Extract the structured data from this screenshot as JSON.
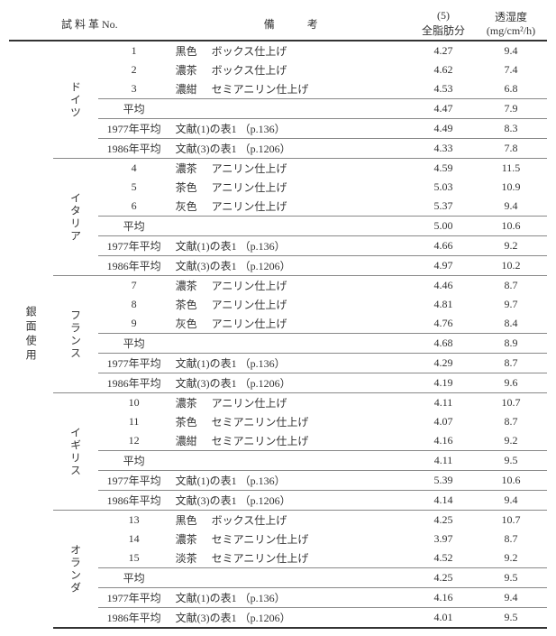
{
  "header": {
    "col_sample": "試 料 革 No.",
    "col_note": "備　　　考",
    "col_fat_top": "(5)",
    "col_fat_bottom": "全脂肪分",
    "col_perm_top": "透湿度",
    "col_perm_bottom": "(mg/cm²/h)"
  },
  "side_label": "銀面使用",
  "groups": [
    {
      "country": "ドイツ",
      "rows": [
        {
          "no": "1",
          "color": "黒色",
          "finish": "ボックス仕上げ",
          "fat": "4.27",
          "perm": "9.4"
        },
        {
          "no": "2",
          "color": "濃茶",
          "finish": "ボックス仕上げ",
          "fat": "4.62",
          "perm": "7.4"
        },
        {
          "no": "3",
          "color": "濃紺",
          "finish": "セミアニリン仕上げ",
          "fat": "4.53",
          "perm": "6.8"
        }
      ],
      "avg": {
        "label": "平均",
        "fat": "4.47",
        "perm": "7.9"
      },
      "refs": [
        {
          "no": "1977年平均",
          "note": "文献(1)の表1 （p.136）",
          "fat": "4.49",
          "perm": "8.3"
        },
        {
          "no": "1986年平均",
          "note": "文献(3)の表1 （p.1206）",
          "fat": "4.33",
          "perm": "7.8"
        }
      ]
    },
    {
      "country": "イタリア",
      "rows": [
        {
          "no": "4",
          "color": "濃茶",
          "finish": "アニリン仕上げ",
          "fat": "4.59",
          "perm": "11.5"
        },
        {
          "no": "5",
          "color": "茶色",
          "finish": "アニリン仕上げ",
          "fat": "5.03",
          "perm": "10.9"
        },
        {
          "no": "6",
          "color": "灰色",
          "finish": "アニリン仕上げ",
          "fat": "5.37",
          "perm": "9.4"
        }
      ],
      "avg": {
        "label": "平均",
        "fat": "5.00",
        "perm": "10.6"
      },
      "refs": [
        {
          "no": "1977年平均",
          "note": "文献(1)の表1 （p.136）",
          "fat": "4.66",
          "perm": "9.2"
        },
        {
          "no": "1986年平均",
          "note": "文献(3)の表1 （p.1206）",
          "fat": "4.97",
          "perm": "10.2"
        }
      ]
    },
    {
      "country": "フランス",
      "rows": [
        {
          "no": "7",
          "color": "濃茶",
          "finish": "アニリン仕上げ",
          "fat": "4.46",
          "perm": "8.7"
        },
        {
          "no": "8",
          "color": "茶色",
          "finish": "アニリン仕上げ",
          "fat": "4.81",
          "perm": "9.7"
        },
        {
          "no": "9",
          "color": "灰色",
          "finish": "アニリン仕上げ",
          "fat": "4.76",
          "perm": "8.4"
        }
      ],
      "avg": {
        "label": "平均",
        "fat": "4.68",
        "perm": "8.9"
      },
      "refs": [
        {
          "no": "1977年平均",
          "note": "文献(1)の表1 （p.136）",
          "fat": "4.29",
          "perm": "8.7"
        },
        {
          "no": "1986年平均",
          "note": "文献(3)の表1 （p.1206）",
          "fat": "4.19",
          "perm": "9.6"
        }
      ]
    },
    {
      "country": "イギリス",
      "rows": [
        {
          "no": "10",
          "color": "濃茶",
          "finish": "アニリン仕上げ",
          "fat": "4.11",
          "perm": "10.7"
        },
        {
          "no": "11",
          "color": "茶色",
          "finish": "セミアニリン仕上げ",
          "fat": "4.07",
          "perm": "8.7"
        },
        {
          "no": "12",
          "color": "濃紺",
          "finish": "セミアニリン仕上げ",
          "fat": "4.16",
          "perm": "9.2"
        }
      ],
      "avg": {
        "label": "平均",
        "fat": "4.11",
        "perm": "9.5"
      },
      "refs": [
        {
          "no": "1977年平均",
          "note": "文献(1)の表1 （p.136）",
          "fat": "5.39",
          "perm": "10.6"
        },
        {
          "no": "1986年平均",
          "note": "文献(3)の表1 （p.1206）",
          "fat": "4.14",
          "perm": "9.4"
        }
      ]
    },
    {
      "country": "オランダ",
      "rows": [
        {
          "no": "13",
          "color": "黒色",
          "finish": "ボックス仕上げ",
          "fat": "4.25",
          "perm": "10.7"
        },
        {
          "no": "14",
          "color": "濃茶",
          "finish": "セミアニリン仕上げ",
          "fat": "3.97",
          "perm": "8.7"
        },
        {
          "no": "15",
          "color": "淡茶",
          "finish": "セミアニリン仕上げ",
          "fat": "4.52",
          "perm": "9.2"
        }
      ],
      "avg": {
        "label": "平均",
        "fat": "4.25",
        "perm": "9.5"
      },
      "refs": [
        {
          "no": "1977年平均",
          "note": "文献(1)の表1 （p.136）",
          "fat": "4.16",
          "perm": "9.4"
        },
        {
          "no": "1986年平均",
          "note": "文献(3)の表1 （p.1206）",
          "fat": "4.01",
          "perm": "9.5"
        }
      ]
    }
  ]
}
